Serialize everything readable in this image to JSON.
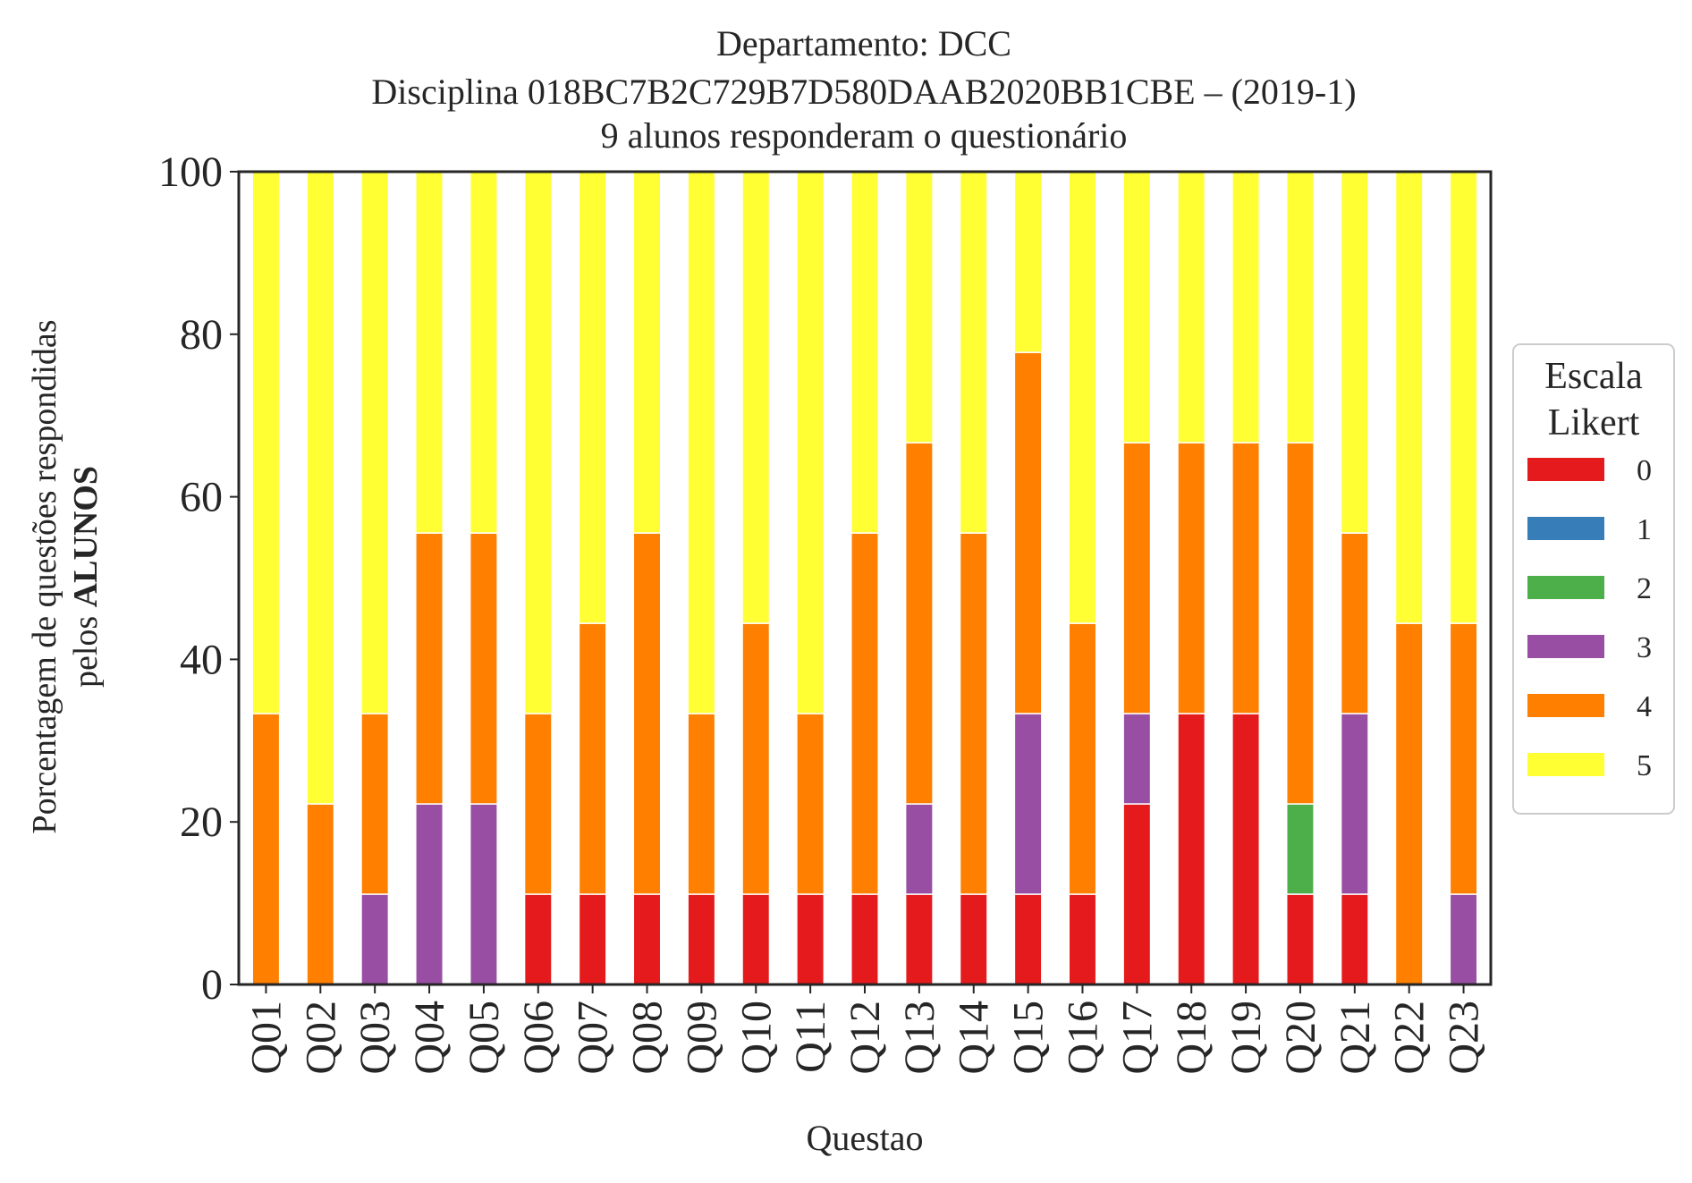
{
  "chart_data": {
    "type": "bar",
    "stacked": true,
    "title_lines": [
      "Departamento: DCC",
      "Disciplina 018BC7B2C729B7D580DAAB2020BB1CBE – (2019-1)",
      "9 alunos responderam o questionário"
    ],
    "xlabel": "Questao",
    "ylabel_line1": "Porcentagem de questões respondidas",
    "ylabel_line2_prefix": "pelos ",
    "ylabel_line2_bold": "ALUNOS",
    "ylim": [
      0,
      100
    ],
    "yticks": [
      "0",
      "20",
      "40",
      "60",
      "80",
      "100"
    ],
    "grid": false,
    "legend": {
      "title_line1": "Escala",
      "title_line2": "Likert",
      "placement": "right"
    },
    "categories": [
      "Q01",
      "Q02",
      "Q03",
      "Q04",
      "Q05",
      "Q06",
      "Q07",
      "Q08",
      "Q09",
      "Q10",
      "Q11",
      "Q12",
      "Q13",
      "Q14",
      "Q15",
      "Q16",
      "Q17",
      "Q18",
      "Q19",
      "Q20",
      "Q21",
      "Q22",
      "Q23"
    ],
    "series": [
      {
        "name": "0",
        "color": "#e41a1c",
        "values": [
          0,
          0,
          0,
          0,
          0,
          11.11,
          11.11,
          11.11,
          11.11,
          11.11,
          11.11,
          11.11,
          11.11,
          11.11,
          11.11,
          11.11,
          22.22,
          33.33,
          33.33,
          11.11,
          11.11,
          0,
          0
        ]
      },
      {
        "name": "1",
        "color": "#377eb8",
        "values": [
          0,
          0,
          0,
          0,
          0,
          0,
          0,
          0,
          0,
          0,
          0,
          0,
          0,
          0,
          0,
          0,
          0,
          0,
          0,
          0,
          0,
          0,
          0
        ]
      },
      {
        "name": "2",
        "color": "#4daf4a",
        "values": [
          0,
          0,
          0,
          0,
          0,
          0,
          0,
          0,
          0,
          0,
          0,
          0,
          0,
          0,
          0,
          0,
          0,
          0,
          0,
          11.11,
          0,
          0,
          0
        ]
      },
      {
        "name": "3",
        "color": "#984ea3",
        "values": [
          0,
          0,
          11.11,
          22.22,
          22.22,
          0,
          0,
          0,
          0,
          0,
          0,
          0,
          11.11,
          0,
          22.22,
          0,
          11.11,
          0,
          0,
          0,
          22.22,
          0,
          11.11
        ]
      },
      {
        "name": "4",
        "color": "#ff7f00",
        "values": [
          33.33,
          22.22,
          22.22,
          33.33,
          33.33,
          22.22,
          33.33,
          44.44,
          22.22,
          33.33,
          22.22,
          44.44,
          44.44,
          44.44,
          44.44,
          33.33,
          33.33,
          33.33,
          33.33,
          44.44,
          22.22,
          44.44,
          33.33
        ]
      },
      {
        "name": "5",
        "color": "#ffff33",
        "values": [
          66.67,
          77.78,
          66.67,
          44.44,
          44.44,
          66.67,
          55.56,
          44.44,
          66.67,
          55.56,
          66.67,
          44.44,
          33.33,
          44.44,
          22.22,
          55.56,
          33.33,
          33.33,
          33.33,
          33.33,
          44.44,
          55.56,
          55.56
        ]
      }
    ]
  }
}
